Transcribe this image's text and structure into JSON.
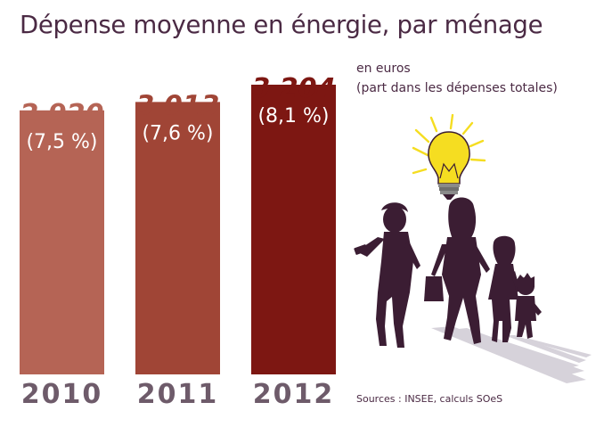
{
  "title": "Dépense moyenne en énergie, par ménage",
  "unit_line1": "en euros",
  "unit_line2": "(part dans les dépenses totales)",
  "source": "Sources : INSEE, calculs SOeS",
  "illustration_icon": "family-with-lightbulb-illustration",
  "colors": {
    "title": "#4b2a44",
    "year": "#6e5b6a",
    "bar_2010": "#b56455",
    "bar_2011": "#a04536",
    "bar_2012": "#7d1712",
    "silhouette": "#3b1d33",
    "shadow": "#d6d2da",
    "bulb": "#f5dd21"
  },
  "chart_data": {
    "type": "bar",
    "categories": [
      "2010",
      "2011",
      "2012"
    ],
    "values": [
      2920,
      3013,
      3204
    ],
    "value_labels": [
      "2 920",
      "3 013",
      "3 204"
    ],
    "share_labels": [
      "(7,5 %)",
      "(7,6 %)",
      "(8,1 %)"
    ],
    "shares": [
      7.5,
      7.6,
      8.1
    ],
    "title": "Dépense moyenne en énergie, par ménage",
    "ylabel": "en euros",
    "grid": false
  }
}
